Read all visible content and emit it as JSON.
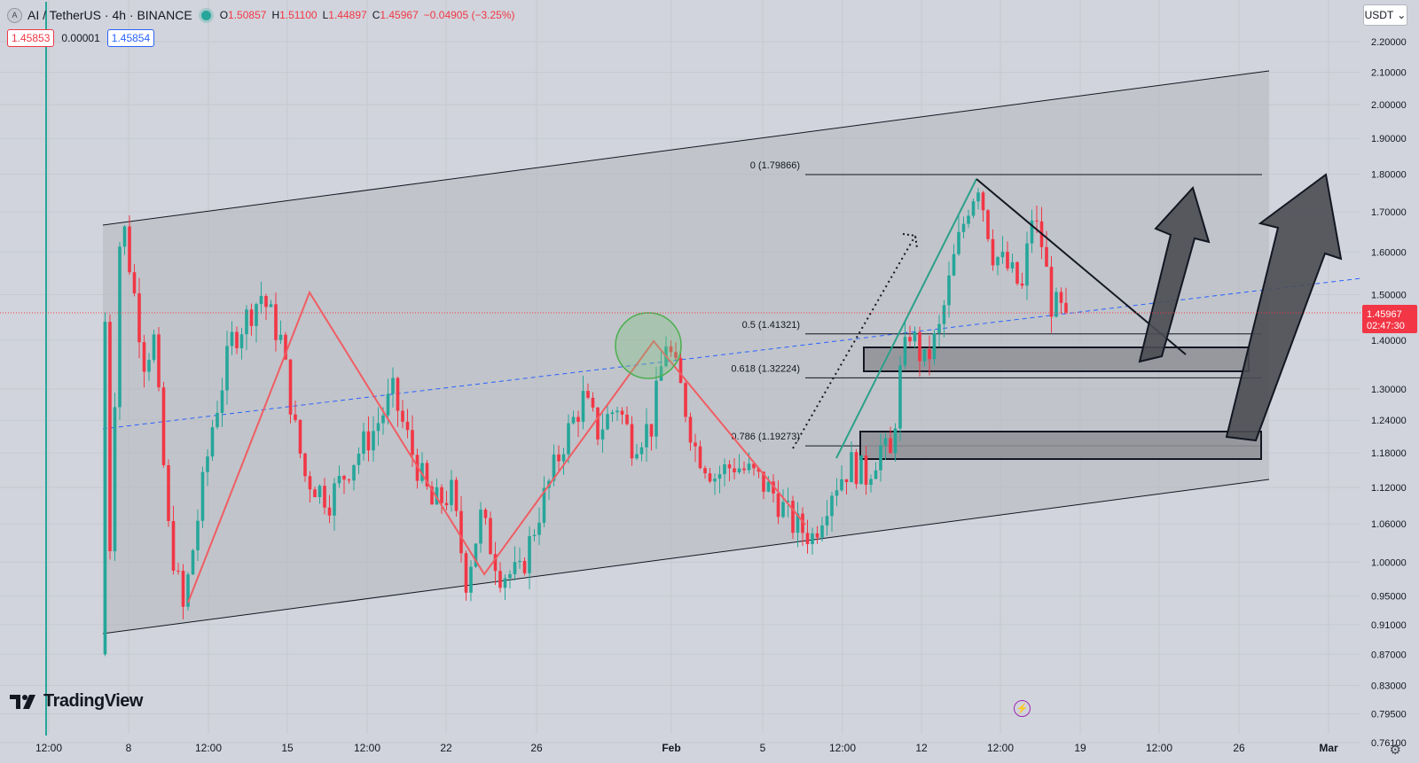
{
  "header": {
    "symbol": "AI",
    "quote": "TetherUS",
    "interval": "4h",
    "exchange": "BINANCE",
    "title": "AI / TetherUS · 4h · BINANCE",
    "ohlc": {
      "open_label": "O",
      "open": "1.50857",
      "high_label": "H",
      "high": "1.51100",
      "low_label": "L",
      "low": "1.44897",
      "close_label": "C",
      "close": "1.45967",
      "change": "−0.04905 (−3.25%)"
    },
    "sell_price": "1.45853",
    "spread": "0.00001",
    "buy_price": "1.45854"
  },
  "currency_selector": {
    "value": "USDT"
  },
  "branding": {
    "logo_text": "TradingView"
  },
  "colors": {
    "bull": "#26a69a",
    "bear": "#f23645",
    "zigzag": "#f05d63",
    "wave_up": "#2aa189",
    "channel_fill": "#b5b7bc",
    "trend_blue": "#2962ff"
  },
  "chart_data": {
    "type": "candlestick",
    "y_scale": "log",
    "ylim": [
      0.745,
      2.28
    ],
    "y_ticks": [
      "2.20000",
      "2.10000",
      "2.00000",
      "1.90000",
      "1.80000",
      "1.70000",
      "1.60000",
      "1.50000",
      "1.40000",
      "1.30000",
      "1.24000",
      "1.18000",
      "1.12000",
      "1.06000",
      "1.00000",
      "0.95000",
      "0.91000",
      "0.87000",
      "0.83000",
      "0.79500",
      "0.76100"
    ],
    "x_ticks": [
      "12:00",
      "8",
      "12:00",
      "15",
      "12:00",
      "22",
      "26",
      "Feb",
      "5",
      "12:00",
      "12",
      "12:00",
      "19",
      "12:00",
      "26",
      "Mar"
    ],
    "last_price": "1.45967",
    "countdown": "02:47:30",
    "fib_levels": [
      {
        "label": "0 (1.79866)",
        "price": 1.79866
      },
      {
        "label": "0.5 (1.41321)",
        "price": 1.41321
      },
      {
        "label": "0.618 (1.32224)",
        "price": 1.32224
      },
      {
        "label": "0.786 (1.19273)",
        "price": 1.19273
      }
    ],
    "key_points": [
      {
        "t": 0,
        "price": 0.87
      },
      {
        "t": 1,
        "price": 1.44
      },
      {
        "t": 2,
        "price": 1.03
      },
      {
        "t": 4,
        "price": 1.62
      },
      {
        "t": 5,
        "price": 1.65
      },
      {
        "t": 9,
        "price": 1.36
      },
      {
        "t": 11,
        "price": 1.4
      },
      {
        "t": 14,
        "price": 1.05
      },
      {
        "t": 17,
        "price": 0.93
      },
      {
        "t": 23,
        "price": 1.23
      },
      {
        "t": 27,
        "price": 1.4
      },
      {
        "t": 33,
        "price": 1.5
      },
      {
        "t": 37,
        "price": 1.4
      },
      {
        "t": 40,
        "price": 1.22
      },
      {
        "t": 42,
        "price": 1.14
      },
      {
        "t": 47,
        "price": 1.1
      },
      {
        "t": 52,
        "price": 1.17
      },
      {
        "t": 56,
        "price": 1.22
      },
      {
        "t": 60,
        "price": 1.29
      },
      {
        "t": 64,
        "price": 1.18
      },
      {
        "t": 68,
        "price": 1.09
      },
      {
        "t": 72,
        "price": 1.11
      },
      {
        "t": 75,
        "price": 0.975
      },
      {
        "t": 78,
        "price": 1.07
      },
      {
        "t": 82,
        "price": 0.985
      },
      {
        "t": 86,
        "price": 0.98
      },
      {
        "t": 90,
        "price": 1.08
      },
      {
        "t": 95,
        "price": 1.2
      },
      {
        "t": 99,
        "price": 1.28
      },
      {
        "t": 102,
        "price": 1.22
      },
      {
        "t": 106,
        "price": 1.27
      },
      {
        "t": 109,
        "price": 1.2
      },
      {
        "t": 113,
        "price": 1.23
      },
      {
        "t": 116,
        "price": 1.4
      },
      {
        "t": 119,
        "price": 1.3
      },
      {
        "t": 122,
        "price": 1.19
      },
      {
        "t": 126,
        "price": 1.14
      },
      {
        "t": 130,
        "price": 1.16
      },
      {
        "t": 134,
        "price": 1.14
      },
      {
        "t": 138,
        "price": 1.11
      },
      {
        "t": 142,
        "price": 1.06
      },
      {
        "t": 146,
        "price": 1.04
      },
      {
        "t": 150,
        "price": 1.12
      },
      {
        "t": 154,
        "price": 1.16
      },
      {
        "t": 157,
        "price": 1.14
      },
      {
        "t": 160,
        "price": 1.19
      },
      {
        "t": 162,
        "price": 1.17
      },
      {
        "t": 164,
        "price": 1.33
      },
      {
        "t": 166,
        "price": 1.42
      },
      {
        "t": 169,
        "price": 1.35
      },
      {
        "t": 172,
        "price": 1.42
      },
      {
        "t": 175,
        "price": 1.58
      },
      {
        "t": 178,
        "price": 1.72
      },
      {
        "t": 180,
        "price": 1.78
      },
      {
        "t": 183,
        "price": 1.6
      },
      {
        "t": 186,
        "price": 1.56
      },
      {
        "t": 189,
        "price": 1.51
      },
      {
        "t": 191,
        "price": 1.69
      },
      {
        "t": 193,
        "price": 1.62
      },
      {
        "t": 195,
        "price": 1.48
      },
      {
        "t": 197,
        "price": 1.46
      }
    ]
  }
}
